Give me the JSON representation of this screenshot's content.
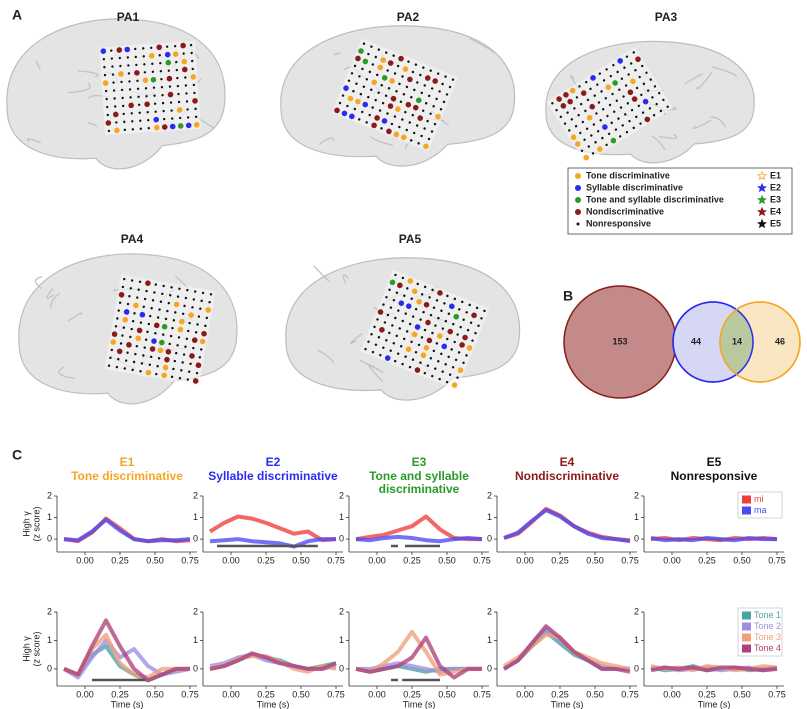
{
  "panel_labels": [
    "A",
    "B",
    "C"
  ],
  "panel_a": {
    "brains": [
      {
        "title": "PA1"
      },
      {
        "title": "PA2"
      },
      {
        "title": "PA3"
      },
      {
        "title": "PA4"
      },
      {
        "title": "PA5"
      }
    ],
    "legend": {
      "groups": [
        {
          "label": "Tone discriminative",
          "color": "#f5a623"
        },
        {
          "label": "Syllable discriminative",
          "color": "#2b2bf0"
        },
        {
          "label": "Tone and syllable discriminative",
          "color": "#2a9a2a"
        },
        {
          "label": "Nondiscriminative",
          "color": "#8b1a1a"
        },
        {
          "label": "Nonresponsive",
          "color": "#111111"
        }
      ],
      "electrodes": [
        {
          "label": "E1",
          "color": "#f5a623"
        },
        {
          "label": "E2",
          "color": "#2b2bf0"
        },
        {
          "label": "E3",
          "color": "#2a9a2a"
        },
        {
          "label": "E4",
          "color": "#8b1a1a"
        },
        {
          "label": "E5",
          "color": "#111111"
        }
      ]
    }
  },
  "panel_b": {
    "sets": [
      {
        "value": 153,
        "color": "#c48a8a",
        "edge": "#8b1a1a"
      },
      {
        "value": 44,
        "color": "#d6d6f5",
        "edge": "#2b2bf0"
      },
      {
        "value": 14,
        "color": "#b8c9a0",
        "edge": "#8aa060"
      },
      {
        "value": 46,
        "color": "#fbe6c4",
        "edge": "#f5a623"
      }
    ]
  },
  "chart_data": [
    {
      "type": "line",
      "title": "E1",
      "subtitle": [
        "Tone discriminative"
      ],
      "title_color": "#f5a623",
      "ylabel": [
        "High γ",
        "(z score)"
      ],
      "x": [
        -0.15,
        -0.05,
        0.05,
        0.15,
        0.25,
        0.35,
        0.45,
        0.55,
        0.65,
        0.75
      ],
      "xlim": [
        -0.2,
        0.8
      ],
      "xticks": [
        {
          "value": 0,
          "label": "0.00"
        },
        {
          "value": 0.25,
          "label": "0.25"
        },
        {
          "value": 0.5,
          "label": "0.50"
        },
        {
          "value": 0.75,
          "label": "0.75"
        }
      ],
      "ylim": [
        -0.6,
        2
      ],
      "yticks": [
        0,
        1,
        2
      ],
      "series": [
        {
          "color": "#f03c3c",
          "values": [
            0.0,
            -0.1,
            0.3,
            0.95,
            0.5,
            0.0,
            -0.1,
            0.0,
            -0.1,
            -0.05
          ]
        },
        {
          "color": "#4a4af0",
          "values": [
            0.0,
            -0.05,
            0.35,
            0.9,
            0.4,
            0.0,
            -0.1,
            -0.05,
            -0.05,
            0.0
          ]
        }
      ]
    },
    {
      "type": "line",
      "title": "E2",
      "subtitle": [
        "Syllable discriminative"
      ],
      "title_color": "#2b2bf0",
      "x": [
        -0.15,
        -0.05,
        0.05,
        0.15,
        0.25,
        0.35,
        0.45,
        0.55,
        0.65,
        0.75
      ],
      "xlim": [
        -0.2,
        0.8
      ],
      "xticks": [
        {
          "value": 0,
          "label": "0.00"
        },
        {
          "value": 0.25,
          "label": "0.25"
        },
        {
          "value": 0.5,
          "label": "0.50"
        },
        {
          "value": 0.75,
          "label": "0.75"
        }
      ],
      "ylim": [
        -0.6,
        2
      ],
      "yticks": [
        0,
        1,
        2
      ],
      "series": [
        {
          "color": "#f03c3c",
          "values": [
            0.35,
            0.75,
            1.05,
            0.95,
            0.75,
            0.5,
            0.25,
            0.35,
            -0.05,
            0.0
          ]
        },
        {
          "color": "#4a4af0",
          "values": [
            -0.1,
            -0.05,
            0.0,
            -0.1,
            -0.15,
            -0.2,
            -0.35,
            -0.1,
            0.0,
            0.0
          ]
        }
      ],
      "significance": [
        [
          -0.1,
          0.62
        ]
      ]
    },
    {
      "type": "line",
      "title": "E3",
      "subtitle": [
        "Tone and syllable",
        "discriminative"
      ],
      "title_color": "#2a9a2a",
      "x": [
        -0.15,
        -0.05,
        0.05,
        0.15,
        0.25,
        0.35,
        0.45,
        0.55,
        0.65,
        0.75
      ],
      "xlim": [
        -0.2,
        0.8
      ],
      "xticks": [
        {
          "value": 0,
          "label": "0.00"
        },
        {
          "value": 0.25,
          "label": "0.25"
        },
        {
          "value": 0.5,
          "label": "0.50"
        },
        {
          "value": 0.75,
          "label": "0.75"
        }
      ],
      "ylim": [
        -0.6,
        2
      ],
      "yticks": [
        0,
        1,
        2
      ],
      "series": [
        {
          "color": "#f03c3c",
          "values": [
            0.0,
            0.1,
            0.2,
            0.4,
            0.6,
            1.05,
            0.45,
            0.05,
            0.0,
            0.0
          ]
        },
        {
          "color": "#4a4af0",
          "values": [
            0.0,
            -0.05,
            0.05,
            0.1,
            0.05,
            -0.05,
            -0.1,
            0.0,
            0.05,
            0.0
          ]
        }
      ],
      "significance": [
        [
          0.1,
          0.15
        ],
        [
          0.2,
          0.45
        ]
      ]
    },
    {
      "type": "line",
      "title": "E4",
      "subtitle": [
        "Nondiscriminative"
      ],
      "title_color": "#8b1a1a",
      "x": [
        -0.15,
        -0.05,
        0.05,
        0.15,
        0.25,
        0.35,
        0.45,
        0.55,
        0.65,
        0.75
      ],
      "xlim": [
        -0.2,
        0.8
      ],
      "xticks": [
        {
          "value": 0,
          "label": "0.00"
        },
        {
          "value": 0.25,
          "label": "0.25"
        },
        {
          "value": 0.5,
          "label": "0.50"
        },
        {
          "value": 0.75,
          "label": "0.75"
        }
      ],
      "ylim": [
        -0.6,
        2
      ],
      "yticks": [
        0,
        1,
        2
      ],
      "series": [
        {
          "color": "#f03c3c",
          "values": [
            0.05,
            0.25,
            0.8,
            1.4,
            1.1,
            0.6,
            0.3,
            0.1,
            0.0,
            -0.05
          ]
        },
        {
          "color": "#4a4af0",
          "values": [
            0.05,
            0.3,
            0.85,
            1.35,
            1.05,
            0.6,
            0.25,
            0.05,
            0.0,
            -0.1
          ]
        }
      ]
    },
    {
      "type": "line",
      "title": "E5",
      "subtitle": [
        "Nonresponsive"
      ],
      "title_color": "#111111",
      "legend": "upper right",
      "x": [
        -0.15,
        -0.05,
        0.05,
        0.15,
        0.25,
        0.35,
        0.45,
        0.55,
        0.65,
        0.75
      ],
      "xlim": [
        -0.2,
        0.8
      ],
      "xticks": [
        {
          "value": 0,
          "label": "0.00"
        },
        {
          "value": 0.25,
          "label": "0.25"
        },
        {
          "value": 0.5,
          "label": "0.50"
        },
        {
          "value": 0.75,
          "label": "0.75"
        }
      ],
      "ylim": [
        -0.6,
        2
      ],
      "yticks": [
        0,
        1,
        2
      ],
      "series": [
        {
          "name": "mi",
          "color": "#f03c3c",
          "values": [
            0.0,
            0.05,
            -0.05,
            0.05,
            0.0,
            -0.05,
            0.05,
            0.0,
            0.05,
            0.0
          ]
        },
        {
          "name": "ma",
          "color": "#4a4af0",
          "values": [
            0.05,
            -0.05,
            0.0,
            -0.05,
            0.05,
            0.0,
            -0.05,
            0.05,
            0.0,
            0.0
          ]
        }
      ]
    },
    {
      "type": "line",
      "ylabel": [
        "High γ",
        "(z score)"
      ],
      "xlabel": "Time (s)",
      "x": [
        -0.15,
        -0.05,
        0.05,
        0.15,
        0.25,
        0.35,
        0.45,
        0.55,
        0.65,
        0.75
      ],
      "xlim": [
        -0.2,
        0.8
      ],
      "xticks": [
        {
          "value": 0,
          "label": "0.00"
        },
        {
          "value": 0.25,
          "label": "0.25"
        },
        {
          "value": 0.5,
          "label": "0.50"
        },
        {
          "value": 0.75,
          "label": "0.75"
        }
      ],
      "ylim": [
        -0.6,
        2
      ],
      "yticks": [
        0,
        1,
        2
      ],
      "series": [
        {
          "color": "#4aa3a0",
          "values": [
            0,
            -0.2,
            0.5,
            0.8,
            0.1,
            -0.2,
            -0.4,
            -0.2,
            0,
            0
          ]
        },
        {
          "color": "#9a8fe0",
          "values": [
            0,
            -0.3,
            0.4,
            1.0,
            0.4,
            0.7,
            0.1,
            -0.2,
            -0.1,
            0
          ]
        },
        {
          "color": "#f0a07a",
          "values": [
            0,
            -0.2,
            0.7,
            1.2,
            0.2,
            -0.2,
            -0.3,
            0,
            0,
            0
          ]
        },
        {
          "color": "#b0407a",
          "values": [
            0,
            -0.2,
            0.8,
            1.7,
            0.8,
            0.0,
            -0.4,
            -0.2,
            0,
            0
          ]
        }
      ],
      "significance": [
        [
          0.05,
          0.43
        ]
      ]
    },
    {
      "type": "line",
      "xlabel": "Time (s)",
      "x": [
        -0.15,
        -0.05,
        0.05,
        0.15,
        0.25,
        0.35,
        0.45,
        0.55,
        0.65,
        0.75
      ],
      "xlim": [
        -0.2,
        0.8
      ],
      "xticks": [
        {
          "value": 0,
          "label": "0.00"
        },
        {
          "value": 0.25,
          "label": "0.25"
        },
        {
          "value": 0.5,
          "label": "0.50"
        },
        {
          "value": 0.75,
          "label": "0.75"
        }
      ],
      "ylim": [
        -0.6,
        2
      ],
      "yticks": [
        0,
        1,
        2
      ],
      "series": [
        {
          "color": "#4aa3a0",
          "values": [
            0.0,
            0.1,
            0.3,
            0.5,
            0.4,
            0.3,
            0.1,
            0.0,
            0.1,
            0.2
          ]
        },
        {
          "color": "#9a8fe0",
          "values": [
            0.1,
            0.2,
            0.4,
            0.5,
            0.3,
            0.2,
            0.1,
            0.0,
            0.0,
            0.1
          ]
        },
        {
          "color": "#f0a07a",
          "values": [
            0.0,
            0.1,
            0.35,
            0.45,
            0.45,
            0.25,
            0.0,
            -0.1,
            0.1,
            0.0
          ]
        },
        {
          "color": "#b0407a",
          "values": [
            0.0,
            0.1,
            0.3,
            0.55,
            0.4,
            0.2,
            0.1,
            0.0,
            0.0,
            0.2
          ]
        }
      ]
    },
    {
      "type": "line",
      "xlabel": "Time (s)",
      "x": [
        -0.15,
        -0.05,
        0.05,
        0.15,
        0.25,
        0.35,
        0.45,
        0.55,
        0.65,
        0.75
      ],
      "xlim": [
        -0.2,
        0.8
      ],
      "xticks": [
        {
          "value": 0,
          "label": "0.00"
        },
        {
          "value": 0.25,
          "label": "0.25"
        },
        {
          "value": 0.5,
          "label": "0.50"
        },
        {
          "value": 0.75,
          "label": "0.75"
        }
      ],
      "ylim": [
        -0.6,
        2
      ],
      "yticks": [
        0,
        1,
        2
      ],
      "series": [
        {
          "color": "#4aa3a0",
          "values": [
            0,
            -0.1,
            0.0,
            0.1,
            0.0,
            -0.1,
            0.0,
            0,
            0,
            0
          ]
        },
        {
          "color": "#9a8fe0",
          "values": [
            0,
            0.0,
            0.1,
            0.2,
            0.1,
            0.0,
            -0.1,
            0,
            0,
            0
          ]
        },
        {
          "color": "#f0a07a",
          "values": [
            0,
            -0.1,
            0.2,
            0.6,
            1.3,
            0.6,
            -0.2,
            -0.1,
            0,
            0
          ]
        },
        {
          "color": "#b0407a",
          "values": [
            0,
            -0.1,
            0.0,
            0.1,
            0.4,
            1.1,
            0.1,
            -0.3,
            0,
            0
          ]
        }
      ],
      "significance": [
        [
          0.1,
          0.15
        ],
        [
          0.18,
          0.45
        ]
      ]
    },
    {
      "type": "line",
      "xlabel": "Time (s)",
      "x": [
        -0.15,
        -0.05,
        0.05,
        0.15,
        0.25,
        0.35,
        0.45,
        0.55,
        0.65,
        0.75
      ],
      "xlim": [
        -0.2,
        0.8
      ],
      "xticks": [
        {
          "value": 0,
          "label": "0.00"
        },
        {
          "value": 0.25,
          "label": "0.25"
        },
        {
          "value": 0.5,
          "label": "0.50"
        },
        {
          "value": 0.75,
          "label": "0.75"
        }
      ],
      "ylim": [
        -0.6,
        2
      ],
      "yticks": [
        0,
        1,
        2
      ],
      "series": [
        {
          "color": "#4aa3a0",
          "values": [
            0,
            0.3,
            0.8,
            1.3,
            0.9,
            0.5,
            0.3,
            0,
            0,
            0
          ]
        },
        {
          "color": "#9a8fe0",
          "values": [
            0,
            0.3,
            0.9,
            1.4,
            1.0,
            0.6,
            0.3,
            0.1,
            0,
            0
          ]
        },
        {
          "color": "#f0a07a",
          "values": [
            0.1,
            0.4,
            0.8,
            1.2,
            1.1,
            0.6,
            0.4,
            0.2,
            0.1,
            0
          ]
        },
        {
          "color": "#b0407a",
          "values": [
            0,
            0.3,
            0.9,
            1.5,
            1.1,
            0.6,
            0.3,
            0,
            0,
            -0.1
          ]
        }
      ]
    },
    {
      "type": "line",
      "xlabel": "Time (s)",
      "legend": "upper right",
      "x": [
        -0.15,
        -0.05,
        0.05,
        0.15,
        0.25,
        0.35,
        0.45,
        0.55,
        0.65,
        0.75
      ],
      "xlim": [
        -0.2,
        0.8
      ],
      "xticks": [
        {
          "value": 0,
          "label": "0.00"
        },
        {
          "value": 0.25,
          "label": "0.25"
        },
        {
          "value": 0.5,
          "label": "0.50"
        },
        {
          "value": 0.75,
          "label": "0.75"
        }
      ],
      "ylim": [
        -0.6,
        2
      ],
      "yticks": [
        0,
        1,
        2
      ],
      "series": [
        {
          "name": "Tone 1",
          "color": "#4aa3a0",
          "values": [
            0.05,
            -0.05,
            0.0,
            0.1,
            -0.05,
            0.0,
            0.05,
            -0.05,
            0.0,
            0.05
          ]
        },
        {
          "name": "Tone 2",
          "color": "#9a8fe0",
          "values": [
            0.0,
            0.05,
            -0.05,
            0.0,
            0.05,
            -0.05,
            0.0,
            0.05,
            -0.05,
            0.0
          ]
        },
        {
          "name": "Tone 3",
          "color": "#f0a07a",
          "values": [
            0.1,
            0.0,
            0.05,
            -0.05,
            0.1,
            0.05,
            -0.05,
            0.0,
            0.1,
            0.05
          ]
        },
        {
          "name": "Tone 4",
          "color": "#b0407a",
          "values": [
            -0.05,
            0.05,
            0.0,
            0.05,
            -0.05,
            0.05,
            0.05,
            0.0,
            -0.05,
            0.0
          ]
        }
      ]
    }
  ]
}
